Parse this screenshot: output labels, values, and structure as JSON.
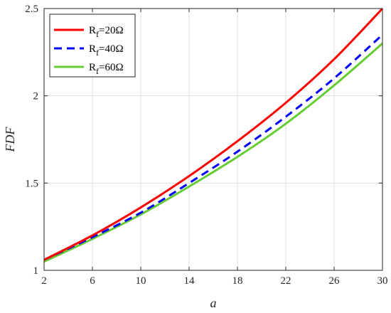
{
  "chart_data": {
    "type": "line",
    "xlabel": "a",
    "ylabel": "FDF",
    "xlim": [
      2,
      30
    ],
    "ylim": [
      1,
      2.5
    ],
    "xticks": [
      2,
      6,
      10,
      14,
      18,
      22,
      26,
      30
    ],
    "yticks": [
      1,
      1.5,
      2,
      2.5
    ],
    "xtick_labels": [
      "2",
      "6",
      "10",
      "14",
      "18",
      "22",
      "26",
      "30"
    ],
    "ytick_labels": [
      "1",
      "1.5",
      "2",
      "2.5"
    ],
    "grid": true,
    "legend_position": "top-left",
    "x": [
      2,
      6,
      10,
      14,
      18,
      22,
      26,
      30
    ],
    "series": [
      {
        "name_main": "R",
        "name_sub": "f",
        "name_rest": "=20Ω",
        "color": "#ff0000",
        "style": "solid",
        "values": [
          1.06,
          1.2,
          1.36,
          1.54,
          1.74,
          1.96,
          2.21,
          2.5
        ]
      },
      {
        "name_main": "R",
        "name_sub": "f",
        "name_rest": "=40Ω",
        "color": "#0000ff",
        "style": "dashed",
        "values": [
          1.06,
          1.19,
          1.33,
          1.5,
          1.68,
          1.88,
          2.1,
          2.35
        ]
      },
      {
        "name_main": "R",
        "name_sub": "f",
        "name_rest": "=60Ω",
        "color": "#66cc33",
        "style": "solid",
        "values": [
          1.05,
          1.18,
          1.32,
          1.48,
          1.65,
          1.84,
          2.06,
          2.3
        ]
      }
    ]
  }
}
